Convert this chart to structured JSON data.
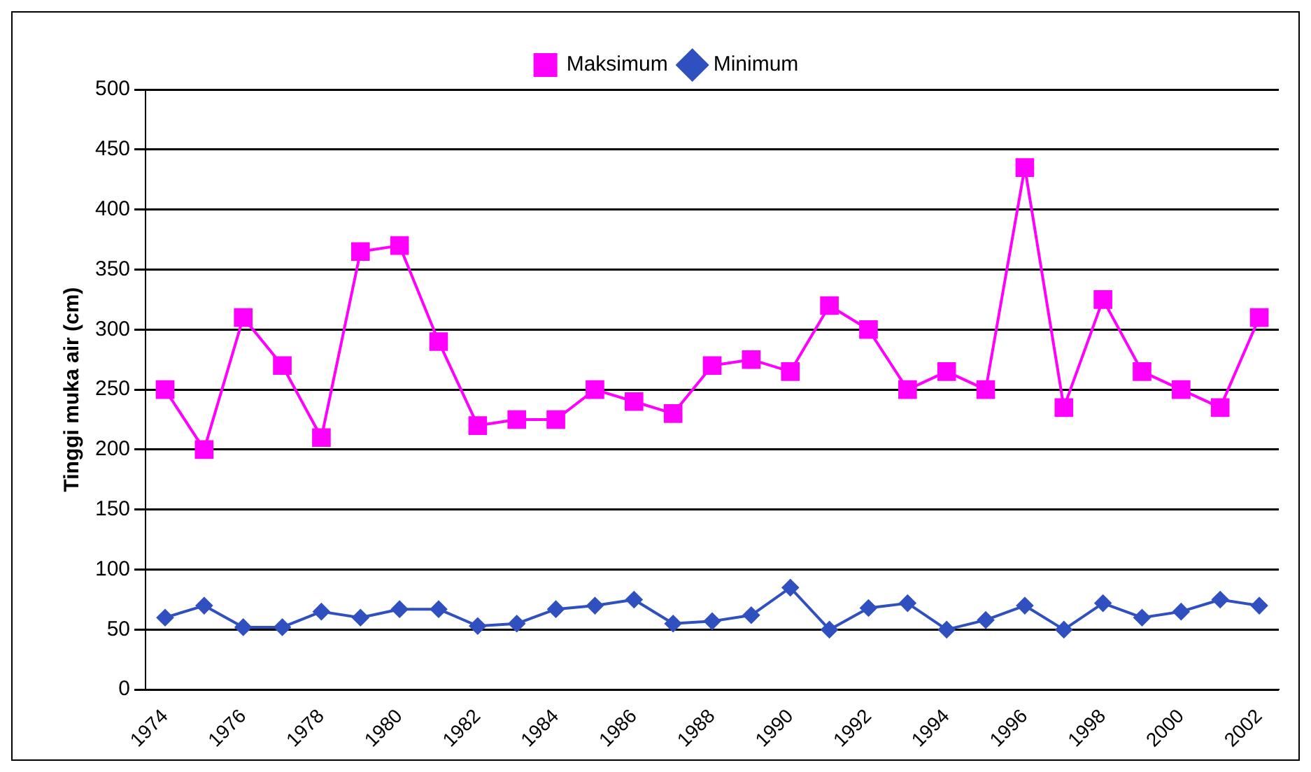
{
  "chart_data": {
    "type": "line",
    "ylabel": "Tinggi muka air (cm)",
    "categories": [
      "1974",
      null,
      "1976",
      null,
      "1978",
      null,
      "1980",
      null,
      "1982",
      null,
      "1984",
      null,
      "1986",
      null,
      "1988",
      null,
      "1990",
      null,
      "1992",
      null,
      "1994",
      null,
      "1996",
      null,
      "1998",
      null,
      "2000",
      null,
      "2002"
    ],
    "series": [
      {
        "name": "Maksimum",
        "color": "#ff00ff",
        "marker": "square",
        "values": [
          250,
          200,
          310,
          270,
          210,
          365,
          370,
          290,
          220,
          225,
          225,
          250,
          240,
          230,
          270,
          275,
          265,
          320,
          300,
          250,
          265,
          250,
          435,
          235,
          325,
          265,
          250,
          235,
          310
        ]
      },
      {
        "name": "Minimum",
        "color": "#3050c0",
        "marker": "diamond",
        "values": [
          60,
          70,
          52,
          52,
          65,
          60,
          67,
          67,
          53,
          55,
          67,
          70,
          75,
          55,
          57,
          62,
          85,
          50,
          68,
          72,
          50,
          58,
          70,
          50,
          72,
          60,
          65,
          75,
          70
        ]
      }
    ],
    "ylim": [
      0,
      500
    ],
    "yticks": [
      0,
      50,
      100,
      150,
      200,
      250,
      300,
      350,
      400,
      450,
      500
    ],
    "grid": "y",
    "legend": "top"
  }
}
